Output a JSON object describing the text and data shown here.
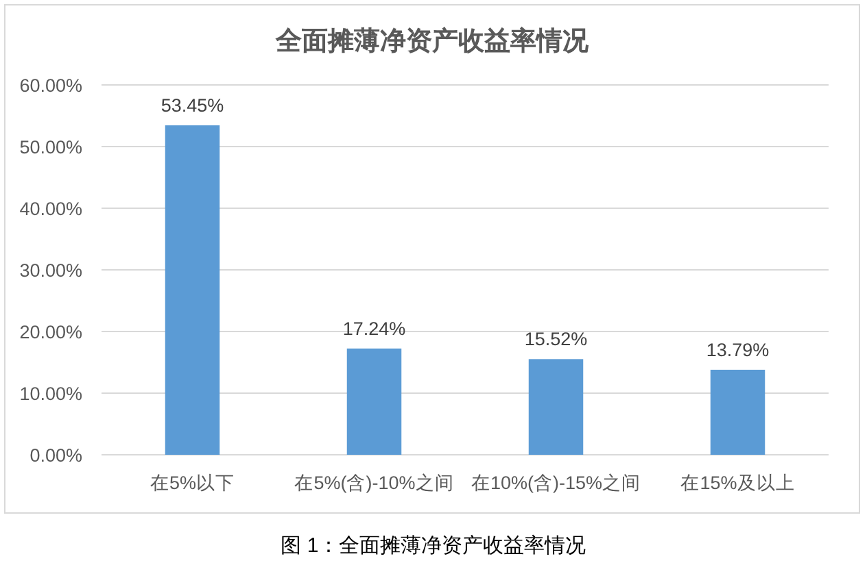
{
  "chart_data": {
    "type": "bar",
    "title": "全面摊薄净资产收益率情况",
    "categories": [
      "在5%以下",
      "在5%(含)-10%之间",
      "在10%(含)-15%之间",
      "在15%及以上"
    ],
    "values": [
      53.45,
      17.24,
      15.52,
      13.79
    ],
    "value_labels": [
      "53.45%",
      "17.24%",
      "15.52%",
      "13.79%"
    ],
    "color": "#5b9bd5",
    "ylim": [
      0,
      60
    ],
    "yticks": [
      {
        "value": 0,
        "label": "0.00%"
      },
      {
        "value": 10,
        "label": "10.00%"
      },
      {
        "value": 20,
        "label": "20.00%"
      },
      {
        "value": 30,
        "label": "30.00%"
      },
      {
        "value": 40,
        "label": "40.00%"
      },
      {
        "value": 50,
        "label": "50.00%"
      },
      {
        "value": 60,
        "label": "60.00%"
      }
    ],
    "grid": "y",
    "annotations": [
      "图 1：全面摊薄净资产收益率情况"
    ]
  }
}
